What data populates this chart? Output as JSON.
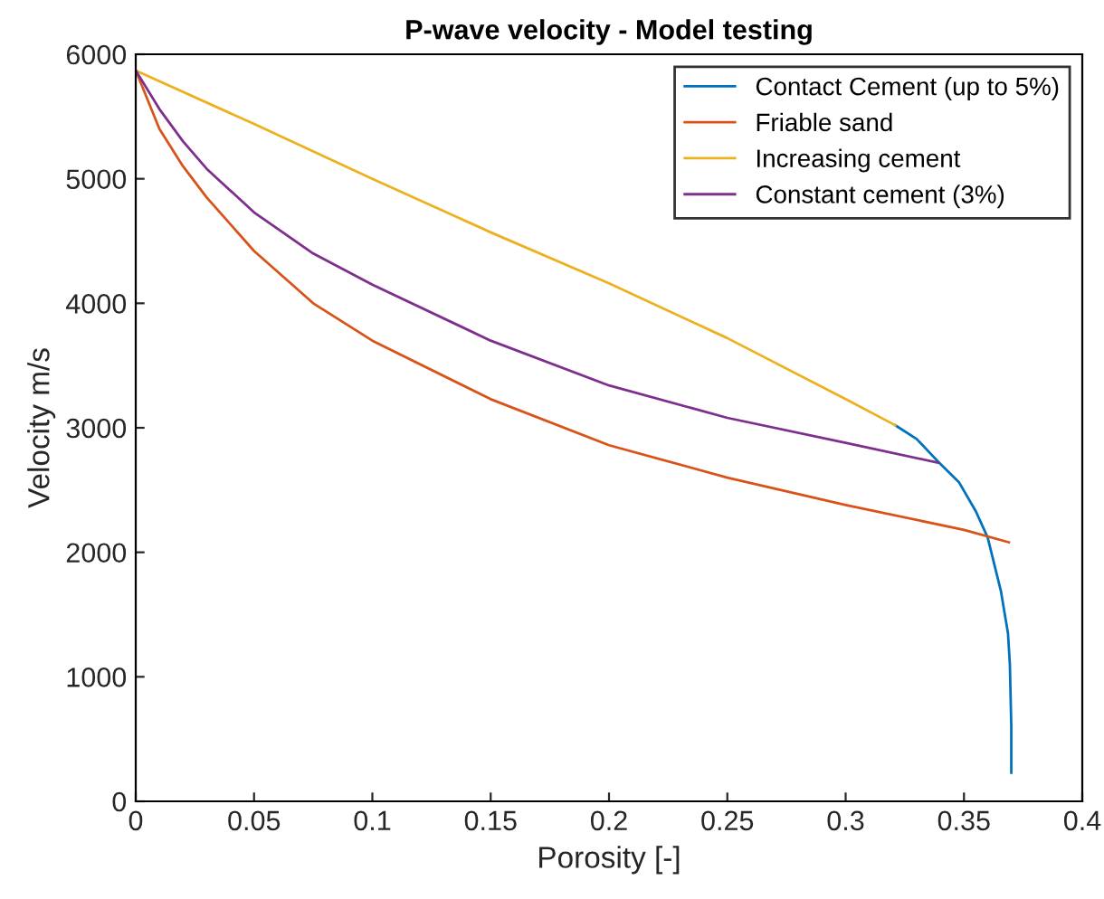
{
  "chart_data": {
    "type": "line",
    "title": "P-wave velocity - Model testing",
    "xlabel": "Porosity [-]",
    "ylabel": "Velocity m/s",
    "xlim": [
      0,
      0.4
    ],
    "ylim": [
      0,
      6000
    ],
    "xticks": [
      0,
      0.05,
      0.1,
      0.15,
      0.2,
      0.25,
      0.3,
      0.35,
      0.4
    ],
    "yticks": [
      0,
      1000,
      2000,
      3000,
      4000,
      5000,
      6000
    ],
    "grid": false,
    "legend": "top right",
    "marker": "none",
    "line_style": "solid",
    "series": [
      {
        "name": "Contact Cement (up to 5%)",
        "color": "#0072bd",
        "x": [
          0.321,
          0.33,
          0.339,
          0.348,
          0.355,
          0.36,
          0.3656,
          0.3686,
          0.3694,
          0.37,
          0.37
        ],
        "values": [
          3020,
          2910,
          2730,
          2560,
          2330,
          2120,
          1690,
          1350,
          1100,
          600,
          230
        ]
      },
      {
        "name": "Friable sand",
        "color": "#d95319",
        "x": [
          0,
          0.01,
          0.02,
          0.03,
          0.05,
          0.075,
          0.1,
          0.15,
          0.2,
          0.25,
          0.3,
          0.35,
          0.369
        ],
        "values": [
          5870,
          5400,
          5100,
          4850,
          4420,
          4000,
          3700,
          3230,
          2860,
          2600,
          2380,
          2180,
          2080
        ]
      },
      {
        "name": "Increasing cement",
        "color": "#edb120",
        "x": [
          0,
          0.05,
          0.1,
          0.15,
          0.2,
          0.25,
          0.3,
          0.321
        ],
        "values": [
          5870,
          5440,
          5000,
          4570,
          4160,
          3720,
          3230,
          3020
        ]
      },
      {
        "name": "Constant cement (3%)",
        "color": "#7e2f8e",
        "x": [
          0,
          0.01,
          0.02,
          0.03,
          0.05,
          0.075,
          0.1,
          0.15,
          0.2,
          0.25,
          0.3,
          0.339
        ],
        "values": [
          5870,
          5560,
          5300,
          5080,
          4730,
          4400,
          4150,
          3700,
          3340,
          3080,
          2880,
          2720
        ]
      }
    ]
  }
}
